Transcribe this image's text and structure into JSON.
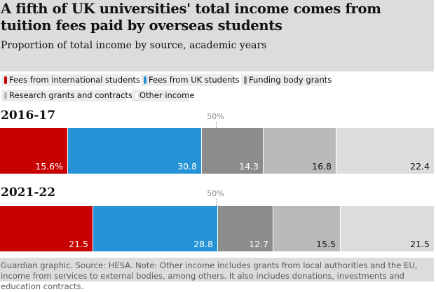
{
  "header": {
    "title": "A fifth of UK universities' total income comes from tuition fees paid by overseas students",
    "subtitle": "Proportion of total income by source, academic years"
  },
  "legend": [
    {
      "key": "intl",
      "label": "Fees from international students",
      "color": "#c70000"
    },
    {
      "key": "uk",
      "label": "Fees from UK students",
      "color": "#2494d6"
    },
    {
      "key": "funding",
      "label": "Funding body grants",
      "color": "#8c8c8c"
    },
    {
      "key": "research",
      "label": "Research grants and contracts",
      "color": "#bababa"
    },
    {
      "key": "other",
      "label": "Other income",
      "color": "#dcdcdc"
    }
  ],
  "footer": {
    "text": "Guardian graphic. Source: HESA. Note: Other income includes grants from local authorities and the EU, income from services to external bodies, among others. It also includes donations, investments and education contracts."
  },
  "chart_data": {
    "type": "bar",
    "orientation": "horizontal",
    "stacked": true,
    "title": "A fifth of UK universities' total income comes from tuition fees paid by overseas students",
    "subtitle": "Proportion of total income by source, academic years",
    "categories": [
      "2016-17",
      "2021-22"
    ],
    "series": [
      {
        "name": "Fees from international students",
        "values": [
          15.6,
          21.5
        ],
        "display": [
          "15.6%",
          "21.5"
        ]
      },
      {
        "name": "Fees from UK students",
        "values": [
          30.8,
          28.8
        ],
        "display": [
          "30.8",
          "28.8"
        ]
      },
      {
        "name": "Funding body grants",
        "values": [
          14.3,
          12.7
        ],
        "display": [
          "14.3",
          "12.7"
        ]
      },
      {
        "name": "Research grants and contracts",
        "values": [
          16.8,
          15.5
        ],
        "display": [
          "16.8",
          "15.5"
        ]
      },
      {
        "name": "Other income",
        "values": [
          22.4,
          21.5
        ],
        "display": [
          "22.4",
          "21.5"
        ]
      }
    ],
    "reference_line": {
      "value": 50,
      "label": "50%"
    },
    "xlim": [
      0,
      100
    ]
  }
}
